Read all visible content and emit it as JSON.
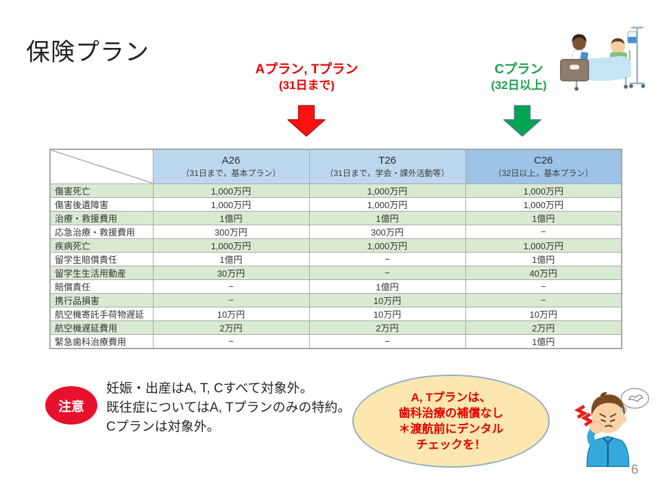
{
  "slide": {
    "title": "保険プラン",
    "page_number": "6"
  },
  "plan_headings": {
    "at": {
      "line1": "Aプラン, Tプラン",
      "line2": "(31日まで)"
    },
    "c": {
      "line1": "Cプラン",
      "line2": "(32日以上)"
    }
  },
  "table": {
    "columns": [
      {
        "name": "A26",
        "subtitle": "（31日まで，基本プラン）"
      },
      {
        "name": "T26",
        "subtitle": "（31日まで，学会・課外活動等）"
      },
      {
        "name": "C26",
        "subtitle": "（32日以上，基本プラン）"
      }
    ],
    "rows": [
      {
        "label": "傷害死亡",
        "a26": "1,000万円",
        "t26": "1,000万円",
        "c26": "1,000万円"
      },
      {
        "label": "傷害後遺障害",
        "a26": "1,000万円",
        "t26": "1,000万円",
        "c26": "1,000万円"
      },
      {
        "label": "治療・救援費用",
        "a26": "1億円",
        "t26": "1億円",
        "c26": "1億円"
      },
      {
        "label": "応急治療・救援費用",
        "a26": "300万円",
        "t26": "300万円",
        "c26": "−"
      },
      {
        "label": "疾病死亡",
        "a26": "1,000万円",
        "t26": "1,000万円",
        "c26": "1,000万円"
      },
      {
        "label": "留学生賠償責任",
        "a26": "1億円",
        "t26": "−",
        "c26": "1億円"
      },
      {
        "label": "留学生生活用動産",
        "a26": "30万円",
        "t26": "−",
        "c26": "40万円"
      },
      {
        "label": "賠償責任",
        "a26": "−",
        "t26": "1億円",
        "c26": "−"
      },
      {
        "label": "携行品損害",
        "a26": "−",
        "t26": "10万円",
        "c26": "−"
      },
      {
        "label": "航空機寄託手荷物遅延",
        "a26": "10万円",
        "t26": "10万円",
        "c26": "10万円"
      },
      {
        "label": "航空機遅延費用",
        "a26": "2万円",
        "t26": "2万円",
        "c26": "2万円"
      },
      {
        "label": "緊急歯科治療費用",
        "a26": "−",
        "t26": "−",
        "c26": "1億円"
      }
    ]
  },
  "caution": {
    "badge": "注意",
    "lines": [
      "妊娠・出産はA, T, Cすべて対象外。",
      "既往症についてはA, Tプランのみの特約。",
      "Cプランは対象外。"
    ]
  },
  "callout": {
    "lines": [
      "A, Tプランは、",
      "歯科治療の補償なし",
      "＊渡航前にデンタル",
      "チェックを！"
    ]
  },
  "icons": {
    "top_right": "hospital-bed-patient-nurse-illustration",
    "bottom_right": "toothache-man-illustration"
  },
  "colors": {
    "heading_red": "#E60000",
    "heading_green": "#1CA04C",
    "arrow_red_fill": "#FF1111",
    "arrow_red_stroke": "#B01010",
    "arrow_green_fill": "#00A64F",
    "arrow_green_stroke": "#4F7A9B",
    "header_blue_light": "#BDD7EE",
    "header_blue_dark": "#9DC3E6",
    "row_green": "#D9EAD3",
    "badge_red": "#E8112D",
    "callout_fill": "#FCE8AE",
    "callout_border": "#8FAFC8"
  }
}
